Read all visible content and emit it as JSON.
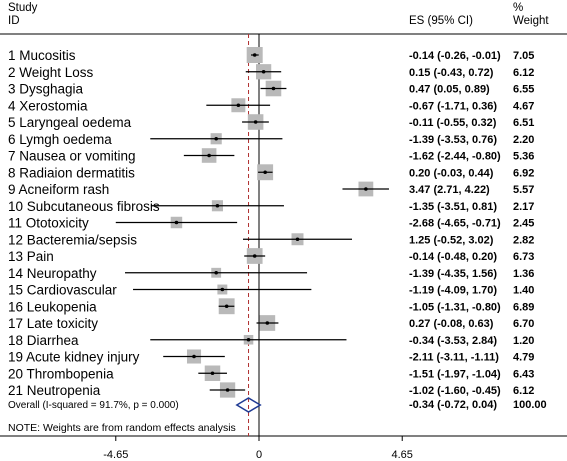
{
  "chart_data": {
    "type": "forest",
    "header": {
      "col1_line1": "Study",
      "col1_line2": "ID",
      "col2": "ES (95% CI)",
      "col3_line1": "%",
      "col3_line2": "Weight"
    },
    "studies": [
      {
        "label": "1 Mucositis",
        "es": -0.14,
        "lo": -0.26,
        "hi": -0.01,
        "ci_text": "-0.14 (-0.26, -0.01)",
        "weight": "7.05"
      },
      {
        "label": "2 Weight Loss",
        "es": 0.15,
        "lo": -0.43,
        "hi": 0.72,
        "ci_text": "0.15 (-0.43, 0.72)",
        "weight": "6.12"
      },
      {
        "label": "3 Dysghagia",
        "es": 0.47,
        "lo": 0.05,
        "hi": 0.89,
        "ci_text": "0.47 (0.05, 0.89)",
        "weight": "6.55"
      },
      {
        "label": "4 Xerostomia",
        "es": -0.67,
        "lo": -1.71,
        "hi": 0.36,
        "ci_text": "-0.67 (-1.71, 0.36)",
        "weight": "4.67"
      },
      {
        "label": "5 Laryngeal oedema",
        "es": -0.11,
        "lo": -0.55,
        "hi": 0.32,
        "ci_text": "-0.11 (-0.55, 0.32)",
        "weight": "6.51"
      },
      {
        "label": "6 Lymgh oedema",
        "es": -1.39,
        "lo": -3.53,
        "hi": 0.76,
        "ci_text": "-1.39 (-3.53, 0.76)",
        "weight": "2.20"
      },
      {
        "label": "7 Nausea or vomiting",
        "es": -1.62,
        "lo": -2.44,
        "hi": -0.8,
        "ci_text": "-1.62 (-2.44, -0.80)",
        "weight": "5.36"
      },
      {
        "label": "8 Radiaion dermatitis",
        "es": 0.2,
        "lo": -0.03,
        "hi": 0.44,
        "ci_text": "0.20 (-0.03, 0.44)",
        "weight": "6.92"
      },
      {
        "label": "9 Acneiform rash",
        "es": 3.47,
        "lo": 2.71,
        "hi": 4.22,
        "ci_text": "3.47 (2.71, 4.22)",
        "weight": "5.57"
      },
      {
        "label": "10 Subcutaneous fibrosis",
        "es": -1.35,
        "lo": -3.51,
        "hi": 0.81,
        "ci_text": "-1.35 (-3.51, 0.81)",
        "weight": "2.17"
      },
      {
        "label": "11 Ototoxicity",
        "es": -2.68,
        "lo": -4.65,
        "hi": -0.71,
        "ci_text": "-2.68 (-4.65, -0.71)",
        "weight": "2.45"
      },
      {
        "label": "12 Bacteremia/sepsis",
        "es": 1.25,
        "lo": -0.52,
        "hi": 3.02,
        "ci_text": "1.25 (-0.52, 3.02)",
        "weight": "2.82"
      },
      {
        "label": "13 Pain",
        "es": -0.14,
        "lo": -0.48,
        "hi": 0.2,
        "ci_text": "-0.14 (-0.48, 0.20)",
        "weight": "6.73"
      },
      {
        "label": "14 Neuropathy",
        "es": -1.39,
        "lo": -4.35,
        "hi": 1.56,
        "ci_text": "-1.39 (-4.35, 1.56)",
        "weight": "1.36"
      },
      {
        "label": "15 Cardiovascular",
        "es": -1.19,
        "lo": -4.09,
        "hi": 1.7,
        "ci_text": "-1.19 (-4.09, 1.70)",
        "weight": "1.40"
      },
      {
        "label": "16 Leukopenia",
        "es": -1.05,
        "lo": -1.31,
        "hi": -0.8,
        "ci_text": "-1.05 (-1.31, -0.80)",
        "weight": "6.89"
      },
      {
        "label": "17 Late toxicity",
        "es": 0.27,
        "lo": -0.08,
        "hi": 0.63,
        "ci_text": "0.27 (-0.08, 0.63)",
        "weight": "6.70"
      },
      {
        "label": "18 Diarrhea",
        "es": -0.34,
        "lo": -3.53,
        "hi": 2.84,
        "ci_text": "-0.34 (-3.53, 2.84)",
        "weight": "1.20"
      },
      {
        "label": "19 Acute kidney injury",
        "es": -2.11,
        "lo": -3.11,
        "hi": -1.11,
        "ci_text": "-2.11 (-3.11, -1.11)",
        "weight": "4.79"
      },
      {
        "label": "20 Thrombopenia",
        "es": -1.51,
        "lo": -1.97,
        "hi": -1.04,
        "ci_text": "-1.51 (-1.97, -1.04)",
        "weight": "6.43"
      },
      {
        "label": "21 Neutropenia",
        "es": -1.02,
        "lo": -1.6,
        "hi": -0.45,
        "ci_text": "-1.02 (-1.60, -0.45)",
        "weight": "6.12"
      }
    ],
    "overall": {
      "label": "Overall  (I-squared = 91.7%, p = 0.000)",
      "es": -0.34,
      "lo": -0.72,
      "hi": 0.04,
      "ci_text": "-0.34 (-0.72, 0.04)",
      "weight": "100.00"
    },
    "note": "NOTE: Weights are from random effects analysis",
    "x_ticks": [
      {
        "value": -4.65,
        "label": "-4.65"
      },
      {
        "value": 0,
        "label": "0"
      },
      {
        "value": 4.65,
        "label": "4.65"
      }
    ],
    "colors": {
      "box": "#b9b9b9",
      "ci_line": "#000000",
      "overall_diamond": "#1f3a93",
      "overall_dashed_line": "#b03030"
    }
  }
}
